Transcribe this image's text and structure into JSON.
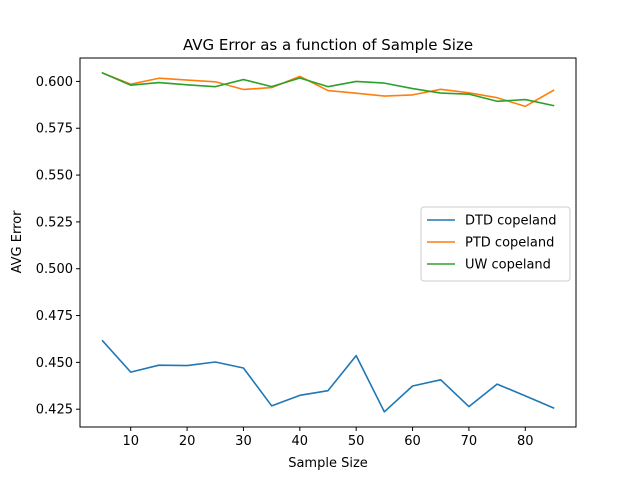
{
  "chart_data": {
    "type": "line",
    "title": "AVG Error as a function of Sample Size",
    "xlabel": "Sample Size",
    "ylabel": "AVG Error",
    "x": [
      5,
      10,
      15,
      20,
      25,
      30,
      35,
      40,
      45,
      50,
      55,
      60,
      65,
      70,
      75,
      80,
      85
    ],
    "series": [
      {
        "name": "DTD copeland",
        "color": "#1f77b4",
        "values": [
          0.4615,
          0.4448,
          0.4485,
          0.4483,
          0.4502,
          0.447,
          0.4268,
          0.4324,
          0.4349,
          0.4536,
          0.4236,
          0.4374,
          0.4407,
          0.4264,
          0.4384,
          0.4321,
          0.4257
        ]
      },
      {
        "name": "PTD copeland",
        "color": "#ff7f0e",
        "values": [
          0.6045,
          0.5985,
          0.6017,
          0.6007,
          0.5998,
          0.5957,
          0.5967,
          0.6027,
          0.5951,
          0.5937,
          0.5922,
          0.5928,
          0.5958,
          0.5939,
          0.5913,
          0.5867,
          0.5952
        ]
      },
      {
        "name": "UW copeland",
        "color": "#2ca02c",
        "values": [
          0.6045,
          0.598,
          0.5994,
          0.5982,
          0.5972,
          0.601,
          0.5972,
          0.6018,
          0.5972,
          0.6,
          0.5991,
          0.5962,
          0.5938,
          0.5932,
          0.5894,
          0.5903,
          0.5871
        ]
      }
    ],
    "xlim": [
      1,
      89
    ],
    "ylim": [
      0.4155,
      0.6125
    ],
    "xticks": [
      10,
      20,
      30,
      40,
      50,
      60,
      70,
      80
    ],
    "yticks": [
      0.425,
      0.45,
      0.475,
      0.5,
      0.525,
      0.55,
      0.575,
      0.6
    ],
    "ytick_labels": [
      "0.425",
      "0.450",
      "0.475",
      "0.500",
      "0.525",
      "0.550",
      "0.575",
      "0.600"
    ],
    "grid": false,
    "legend_position": "center-right"
  }
}
